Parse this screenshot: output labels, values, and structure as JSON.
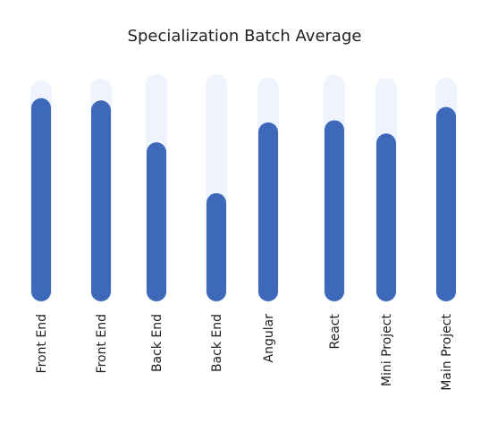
{
  "chart_data": {
    "type": "bar",
    "title": "Specialization Batch Average",
    "categories": [
      "Front End",
      "Front End",
      "Back End",
      "Back End",
      "Angular",
      "React",
      "Mini Project",
      "Main Project"
    ],
    "values": [
      92,
      91,
      72,
      49,
      81,
      82,
      76,
      88
    ],
    "ylim": [
      0,
      100
    ],
    "grid": false,
    "legend": "none"
  },
  "colors": {
    "bar": "#3e68b9",
    "track": "#eef3fd",
    "text": "#1f1f1f",
    "background": "#ffffff"
  }
}
